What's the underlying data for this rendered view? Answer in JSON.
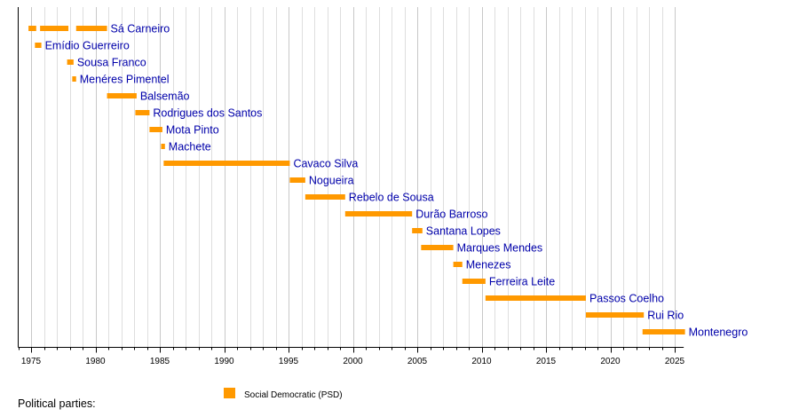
{
  "chart_data": {
    "type": "timeline",
    "title": "",
    "xlabel": "",
    "ylabel": "",
    "xlim": [
      1974,
      2025.7
    ],
    "major_tick_step": 5,
    "minor_tick_step": 1,
    "grid": true,
    "tick_labels": [
      "1975",
      "1980",
      "1985",
      "1990",
      "1995",
      "2000",
      "2005",
      "2010",
      "2015",
      "2020",
      "2025"
    ],
    "bar_color": "#ff9900",
    "label_color": "#0000aa",
    "rows": [
      {
        "name": "Sá Carneiro",
        "segments": [
          [
            1974.8,
            1975.4
          ],
          [
            1975.7,
            1977.9
          ],
          [
            1978.5,
            1980.9
          ]
        ]
      },
      {
        "name": "Emídio Guerreiro",
        "segments": [
          [
            1975.3,
            1975.8
          ]
        ]
      },
      {
        "name": "Sousa Franco",
        "segments": [
          [
            1977.8,
            1978.3
          ]
        ]
      },
      {
        "name": "Menéres Pimentel",
        "segments": [
          [
            1978.2,
            1978.5
          ]
        ]
      },
      {
        "name": "Balsemão",
        "segments": [
          [
            1980.9,
            1983.2
          ]
        ]
      },
      {
        "name": "Rodrigues dos Santos",
        "segments": [
          [
            1983.1,
            1984.2
          ]
        ]
      },
      {
        "name": "Mota Pinto",
        "segments": [
          [
            1984.2,
            1985.2
          ]
        ]
      },
      {
        "name": "Machete",
        "segments": [
          [
            1985.1,
            1985.4
          ]
        ]
      },
      {
        "name": "Cavaco Silva",
        "segments": [
          [
            1985.3,
            1995.1
          ]
        ]
      },
      {
        "name": "Nogueira",
        "segments": [
          [
            1995.1,
            1996.3
          ]
        ]
      },
      {
        "name": "Rebelo de Sousa",
        "segments": [
          [
            1996.3,
            1999.4
          ]
        ]
      },
      {
        "name": "Durão Barroso",
        "segments": [
          [
            1999.4,
            2004.6
          ]
        ]
      },
      {
        "name": "Santana Lopes",
        "segments": [
          [
            2004.6,
            2005.4
          ]
        ]
      },
      {
        "name": "Marques Mendes",
        "segments": [
          [
            2005.3,
            2007.8
          ]
        ]
      },
      {
        "name": "Menezes",
        "segments": [
          [
            2007.8,
            2008.5
          ]
        ]
      },
      {
        "name": "Ferreira Leite",
        "segments": [
          [
            2008.5,
            2010.3
          ]
        ]
      },
      {
        "name": "Passos Coelho",
        "segments": [
          [
            2010.3,
            2018.1
          ]
        ]
      },
      {
        "name": "Rui Rio",
        "segments": [
          [
            2018.1,
            2022.6
          ]
        ]
      },
      {
        "name": "Montenegro",
        "segments": [
          [
            2022.5,
            2025.8
          ]
        ]
      }
    ],
    "legend": {
      "title": "Political parties:",
      "entries": [
        {
          "label": "Social Democratic (PSD)",
          "color": "#ff9900"
        }
      ]
    }
  }
}
